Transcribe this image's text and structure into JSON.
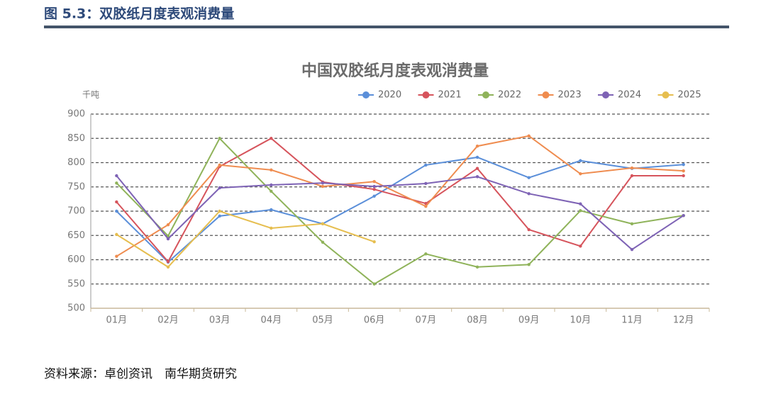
{
  "header": {
    "title": "图 5.3：双胶纸月度表观消费量"
  },
  "chart_data": {
    "type": "line",
    "title": "中国双胶纸月度表观消费量",
    "y_label": "千吨",
    "categories": [
      "01月",
      "02月",
      "03月",
      "04月",
      "05月",
      "06月",
      "07月",
      "08月",
      "09月",
      "10月",
      "11月",
      "12月"
    ],
    "ylim": [
      500,
      900
    ],
    "yticks": [
      500,
      550,
      600,
      650,
      700,
      750,
      800,
      850,
      900
    ],
    "grid": true,
    "legend": "top-right",
    "series": [
      {
        "name": "2020",
        "color": "#5b8fd9",
        "values": [
          700,
          595,
          690,
          703,
          674,
          731,
          795,
          811,
          769,
          804,
          788,
          796
        ]
      },
      {
        "name": "2021",
        "color": "#d6545c",
        "values": [
          719,
          596,
          792,
          850,
          760,
          745,
          716,
          788,
          662,
          628,
          773,
          773
        ]
      },
      {
        "name": "2022",
        "color": "#8fb35a",
        "values": [
          758,
          649,
          850,
          741,
          636,
          550,
          612,
          585,
          590,
          701,
          674,
          691
        ]
      },
      {
        "name": "2023",
        "color": "#ef8c4f",
        "values": [
          607,
          672,
          795,
          785,
          751,
          761,
          710,
          834,
          855,
          777,
          789,
          783
        ]
      },
      {
        "name": "2024",
        "color": "#7e63b5",
        "values": [
          773,
          643,
          748,
          754,
          758,
          751,
          757,
          771,
          736,
          715,
          621,
          691
        ]
      },
      {
        "name": "2025",
        "color": "#e6be4f",
        "values": [
          652,
          585,
          700,
          665,
          674,
          637,
          null,
          null,
          null,
          null,
          null,
          null
        ]
      }
    ]
  },
  "source": "资料来源：卓创资讯　南华期货研究"
}
